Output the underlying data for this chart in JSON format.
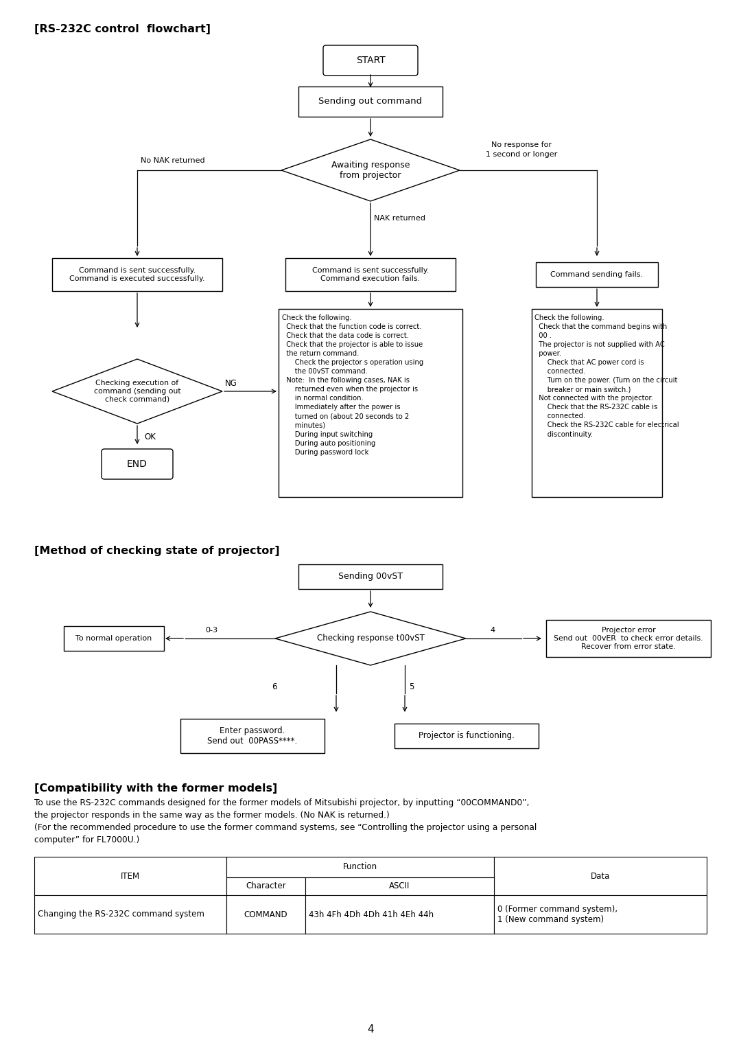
{
  "title1": "[RS-232C control  flowchart]",
  "title2": "[Method of checking state of projector]",
  "title3": "[Compatibility with the former models]",
  "compat_text1": "To use the RS-232C commands designed for the former models of Mitsubishi projector, by inputting “00COMMAND0”,",
  "compat_text2": "the projector responds in the same way as the former models. (No NAK is returned.)",
  "compat_text3": "(For the recommended procedure to use the former command systems, see “Controlling the projector using a personal",
  "compat_text4": "computer” for FL7000U.)",
  "table_row": [
    "Changing the RS-232C command system",
    "COMMAND",
    "43h 4Fh 4Dh 4Dh 41h 4Eh 44h",
    "0 (Former command system),\n1 (New command system)"
  ],
  "page_num": "4",
  "bg_color": "#ffffff"
}
